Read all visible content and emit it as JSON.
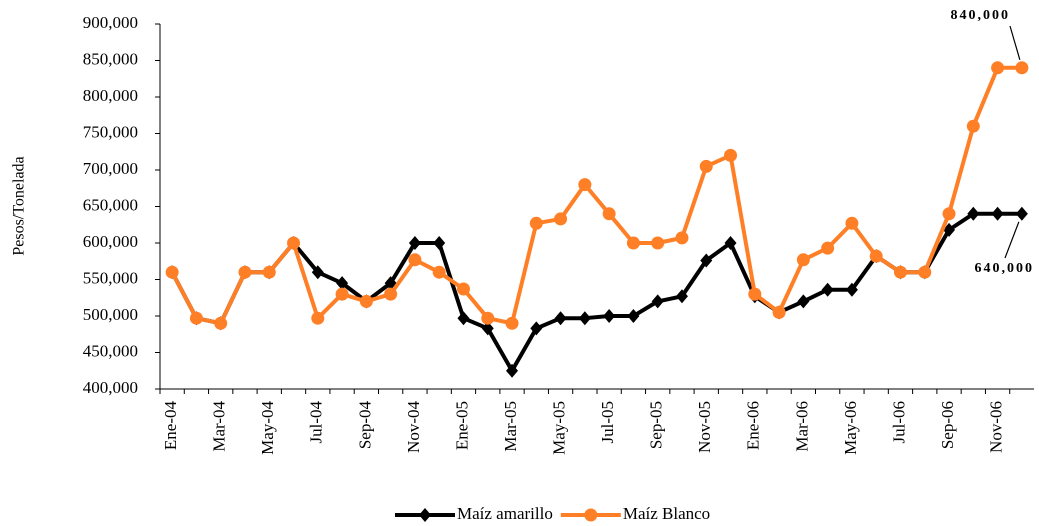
{
  "chart_data": {
    "type": "line",
    "y_label": "Pesos/Tonelada",
    "categories": [
      "Ene-04",
      null,
      "Mar-04",
      null,
      "May-04",
      null,
      "Jul-04",
      null,
      "Sep-04",
      null,
      "Nov-04",
      null,
      "Ene-05",
      null,
      "Mar-05",
      null,
      "May-05",
      null,
      "Jul-05",
      null,
      "Sep-05",
      null,
      "Nov-05",
      null,
      "Ene-06",
      null,
      "Mar-06",
      null,
      "May-06",
      null,
      "Jul-06",
      null,
      "Sep-06",
      null,
      "Nov-06",
      null
    ],
    "series": [
      {
        "name": "Maíz amarillo",
        "color": "#000000",
        "marker": "diamond",
        "values": [
          560000,
          497000,
          490000,
          560000,
          560000,
          600000,
          560000,
          545000,
          520000,
          545000,
          600000,
          600000,
          497000,
          483000,
          425000,
          483000,
          497000,
          497000,
          500000,
          500000,
          520000,
          527000,
          576000,
          600000,
          527000,
          505000,
          520000,
          536000,
          536000,
          582000,
          560000,
          560000,
          618000,
          640000,
          640000,
          640000
        ]
      },
      {
        "name": "Maíz Blanco",
        "color": "#ff7f27",
        "marker": "circle",
        "values": [
          560000,
          497000,
          490000,
          560000,
          560000,
          600000,
          497000,
          530000,
          520000,
          530000,
          577000,
          560000,
          537000,
          497000,
          490000,
          627000,
          633000,
          680000,
          640000,
          600000,
          600000,
          607000,
          705000,
          720000,
          530000,
          505000,
          577000,
          593000,
          627000,
          582000,
          560000,
          560000,
          640000,
          760000,
          840000,
          840000
        ]
      }
    ],
    "annotations": [
      "840,000",
      "640,000"
    ],
    "ylim": [
      400000,
      900000
    ],
    "yticks": [
      {
        "value": 400000,
        "label": "400,000"
      },
      {
        "value": 450000,
        "label": "450,000"
      },
      {
        "value": 500000,
        "label": "500,000"
      },
      {
        "value": 550000,
        "label": "550,000"
      },
      {
        "value": 600000,
        "label": "600,000"
      },
      {
        "value": 650000,
        "label": "650,000"
      },
      {
        "value": 700000,
        "label": "700,000"
      },
      {
        "value": 750000,
        "label": "750,000"
      },
      {
        "value": 800000,
        "label": "800,000"
      },
      {
        "value": 850000,
        "label": "850,000"
      },
      {
        "value": 900000,
        "label": "900,000"
      }
    ],
    "grid": false,
    "legend": "bottom"
  }
}
